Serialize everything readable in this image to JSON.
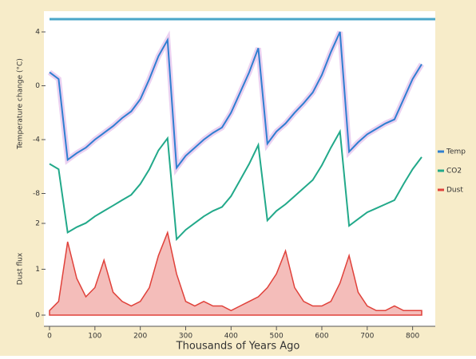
{
  "chart_data": [
    {
      "type": "line",
      "y_label": "Temperature change (°C)",
      "x": [
        0,
        20,
        40,
        60,
        80,
        100,
        120,
        140,
        160,
        180,
        200,
        220,
        240,
        260,
        280,
        300,
        320,
        340,
        360,
        380,
        400,
        420,
        440,
        460,
        480,
        500,
        520,
        540,
        560,
        580,
        600,
        620,
        640,
        660,
        680,
        700,
        720,
        740,
        760,
        780,
        800,
        820
      ],
      "xlim": [
        0,
        820
      ],
      "ylim": [
        -12,
        4
      ],
      "yticks": [
        -8,
        -4,
        0,
        4
      ],
      "y2lim": [
        160,
        320
      ],
      "series": [
        {
          "name": "Temp",
          "color": "#2f7fd0",
          "values": [
            1.0,
            0.5,
            -5.5,
            -5.0,
            -4.6,
            -4.0,
            -3.5,
            -3.0,
            -2.4,
            -1.9,
            -1.0,
            0.5,
            2.2,
            3.4,
            -6.1,
            -5.2,
            -4.6,
            -4.0,
            -3.5,
            -3.1,
            -2.0,
            -0.5,
            1.0,
            2.8,
            -4.3,
            -3.4,
            -2.8,
            -2.0,
            -1.3,
            -0.5,
            0.8,
            2.5,
            4.0,
            -4.9,
            -4.2,
            -3.6,
            -3.2,
            -2.8,
            -2.5,
            -1.0,
            0.5,
            1.6
          ]
        },
        {
          "name": "CO2",
          "color": "#22a98a",
          "axis": "y2",
          "values": [
            222,
            218,
            171,
            175,
            178,
            183,
            187,
            191,
            195,
            199,
            207,
            218,
            232,
            241,
            166,
            173,
            178,
            183,
            187,
            190,
            198,
            210,
            222,
            236,
            180,
            187,
            192,
            198,
            204,
            210,
            221,
            234,
            246,
            176,
            181,
            186,
            189,
            192,
            195,
            207,
            218,
            227
          ]
        }
      ]
    },
    {
      "type": "area",
      "y_label": "Dust flux",
      "x_label": "Thousands of Years Ago",
      "x": [
        0,
        20,
        40,
        60,
        80,
        100,
        120,
        140,
        160,
        180,
        200,
        220,
        240,
        260,
        280,
        300,
        320,
        340,
        360,
        380,
        400,
        420,
        440,
        460,
        480,
        500,
        520,
        540,
        560,
        580,
        600,
        620,
        640,
        660,
        680,
        700,
        720,
        740,
        760,
        780,
        800,
        820
      ],
      "xlim": [
        0,
        820
      ],
      "xticks": [
        0,
        100,
        200,
        300,
        400,
        500,
        600,
        700,
        800
      ],
      "ylim": [
        0,
        2
      ],
      "yticks": [
        0,
        1,
        2
      ],
      "series": [
        {
          "name": "Dust",
          "color": "#e0413a",
          "values": [
            0.1,
            0.3,
            1.6,
            0.8,
            0.4,
            0.6,
            1.2,
            0.5,
            0.3,
            0.2,
            0.3,
            0.6,
            1.3,
            1.8,
            0.9,
            0.3,
            0.2,
            0.3,
            0.2,
            0.2,
            0.1,
            0.2,
            0.3,
            0.4,
            0.6,
            0.9,
            1.4,
            0.6,
            0.3,
            0.2,
            0.2,
            0.3,
            0.7,
            1.3,
            0.5,
            0.2,
            0.1,
            0.1,
            0.2,
            0.1,
            0.1,
            0.1
          ]
        }
      ]
    }
  ]
}
